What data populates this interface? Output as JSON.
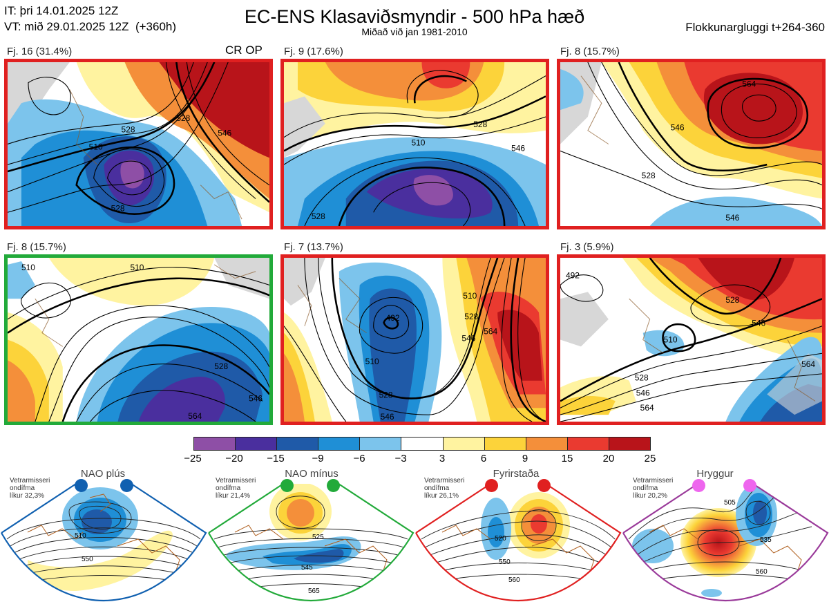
{
  "header": {
    "initial_time": "IT: þri 14.01.2025 12Z",
    "valid_time": "VT: mið 29.01.2025 12Z  (+360h)",
    "title": "EC-ENS Klasaviðsmyndir - 500 hPa hæð",
    "subtitle": "Miðað við jan 1981-2010",
    "cluster_window": "Flokkunargluggi t+264-360"
  },
  "panels": [
    {
      "label": "Fj. 16 (31.4%)",
      "tag": "CR OP",
      "contours": [
        "510",
        "528",
        "528",
        "546",
        "528"
      ]
    },
    {
      "label": "Fj. 9 (17.6%)",
      "tag": "",
      "contours": [
        "510",
        "528",
        "528",
        "546"
      ]
    },
    {
      "label": "Fj. 8 (15.7%)",
      "tag": "",
      "contours": [
        "564",
        "546",
        "528",
        "546"
      ]
    },
    {
      "label": "Fj. 8 (15.7%)",
      "tag": "",
      "contours": [
        "510",
        "510",
        "528",
        "546",
        "564"
      ]
    },
    {
      "label": "Fj. 7 (13.7%)",
      "tag": "",
      "contours": [
        "492",
        "510",
        "528",
        "546",
        "510",
        "528",
        "546",
        "564"
      ]
    },
    {
      "label": "Fj. 3 (5.9%)",
      "tag": "",
      "contours": [
        "492",
        "528",
        "546",
        "510",
        "528",
        "546",
        "564",
        "564"
      ]
    }
  ],
  "colorbar": {
    "ticks": [
      "−25",
      "−20",
      "−15",
      "−9",
      "−6",
      "−3",
      "3",
      "6",
      "9",
      "15",
      "20",
      "25"
    ],
    "colors": [
      "#8e4fa6",
      "#4a2f9e",
      "#1f5aa8",
      "#1f8fd6",
      "#7cc4ec",
      "#ffffff",
      "#fff3a0",
      "#fcd33a",
      "#f48f3a",
      "#ea3a30",
      "#b8141a"
    ]
  },
  "regimes": [
    {
      "name": "NAO plús",
      "info": "Vetrarmisseri\nondífma\nlíkur 32,3%",
      "color": "#1060b0",
      "contours": [
        "510",
        "550"
      ]
    },
    {
      "name": "NAO mínus",
      "info": "Vetrarmisseri\nondífma\nlíkur 21,4%",
      "color": "#22aa3a",
      "contours": [
        "525",
        "545",
        "565"
      ]
    },
    {
      "name": "Fyrirstaða",
      "info": "Vetrarmisseri\nondífma\nlíkur 26,1%",
      "color": "#e02020",
      "contours": [
        "520",
        "550",
        "560"
      ]
    },
    {
      "name": "Hryggur",
      "info": "Vetrarmisseri\nondífma\nlíkur 20,2%",
      "color": "#ee66ee",
      "contours": [
        "505",
        "535",
        "560"
      ]
    }
  ]
}
